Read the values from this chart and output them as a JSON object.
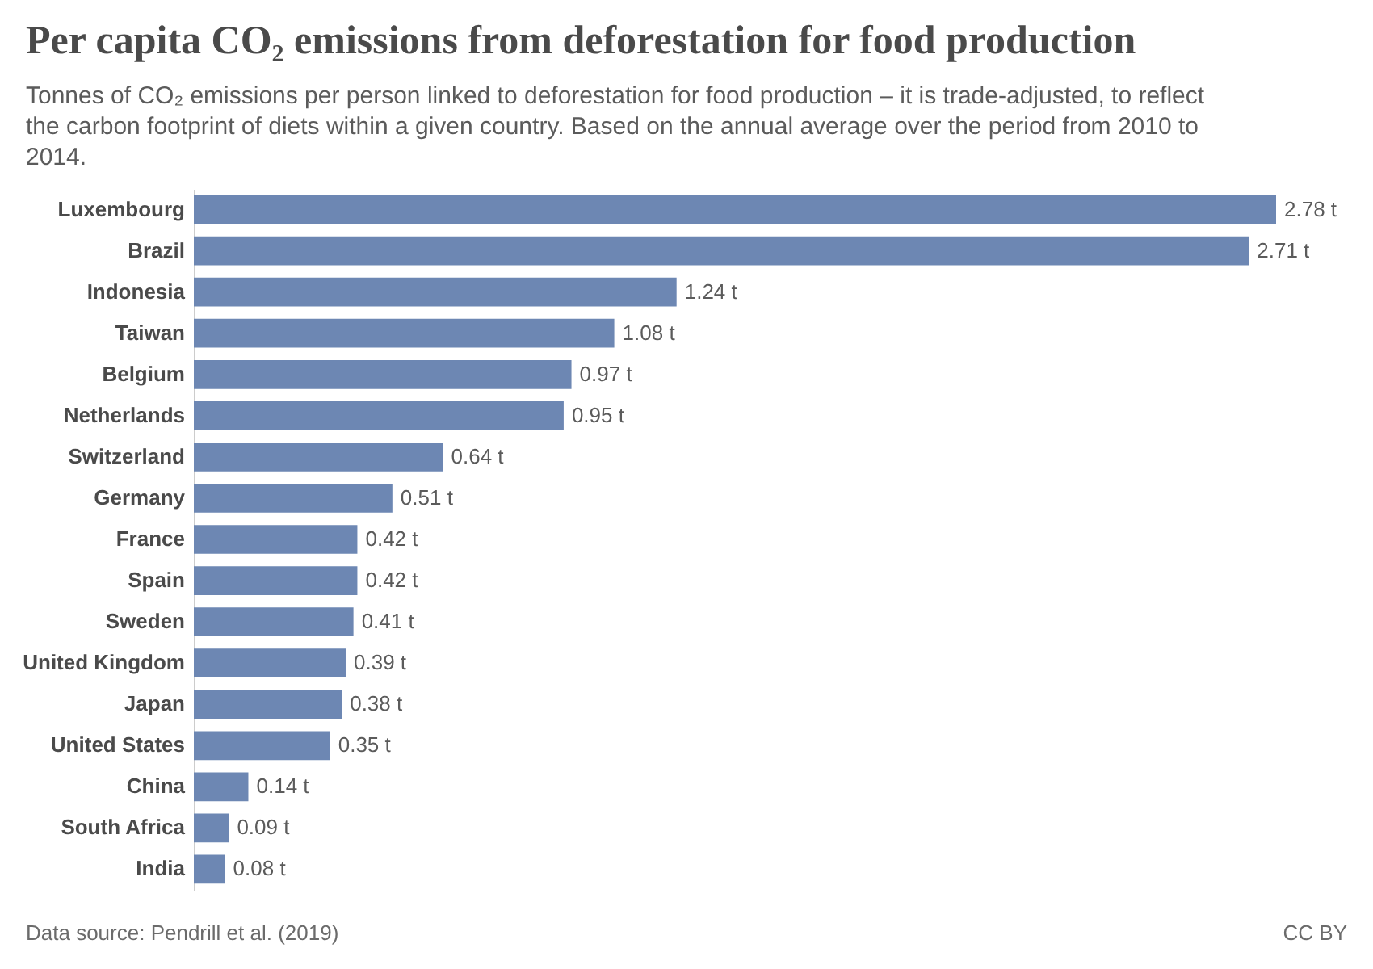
{
  "chart_data": {
    "type": "bar",
    "orientation": "horizontal",
    "title": "Per capita CO₂ emissions from deforestation for food production",
    "subtitle": "Tonnes of CO₂ emissions per person linked to deforestation for food production – it is trade-adjusted, to reflect the carbon footprint of diets within a given country. Based on the annual average over the period from 2010 to 2014.",
    "categories": [
      "Luxembourg",
      "Brazil",
      "Indonesia",
      "Taiwan",
      "Belgium",
      "Netherlands",
      "Switzerland",
      "Germany",
      "France",
      "Spain",
      "Sweden",
      "United Kingdom",
      "Japan",
      "United States",
      "China",
      "South Africa",
      "India"
    ],
    "values": [
      2.78,
      2.71,
      1.24,
      1.08,
      0.97,
      0.95,
      0.64,
      0.51,
      0.42,
      0.42,
      0.41,
      0.39,
      0.38,
      0.35,
      0.14,
      0.09,
      0.08
    ],
    "value_labels": [
      "2.78 t",
      "2.71 t",
      "1.24 t",
      "1.08 t",
      "0.97 t",
      "0.95 t",
      "0.64 t",
      "0.51 t",
      "0.42 t",
      "0.42 t",
      "0.41 t",
      "0.39 t",
      "0.38 t",
      "0.35 t",
      "0.14 t",
      "0.09 t",
      "0.08 t"
    ],
    "color": "#6d87b3",
    "annotations": [
      "Data source: Pendrill et al. (2019)",
      "CC BY"
    ]
  }
}
